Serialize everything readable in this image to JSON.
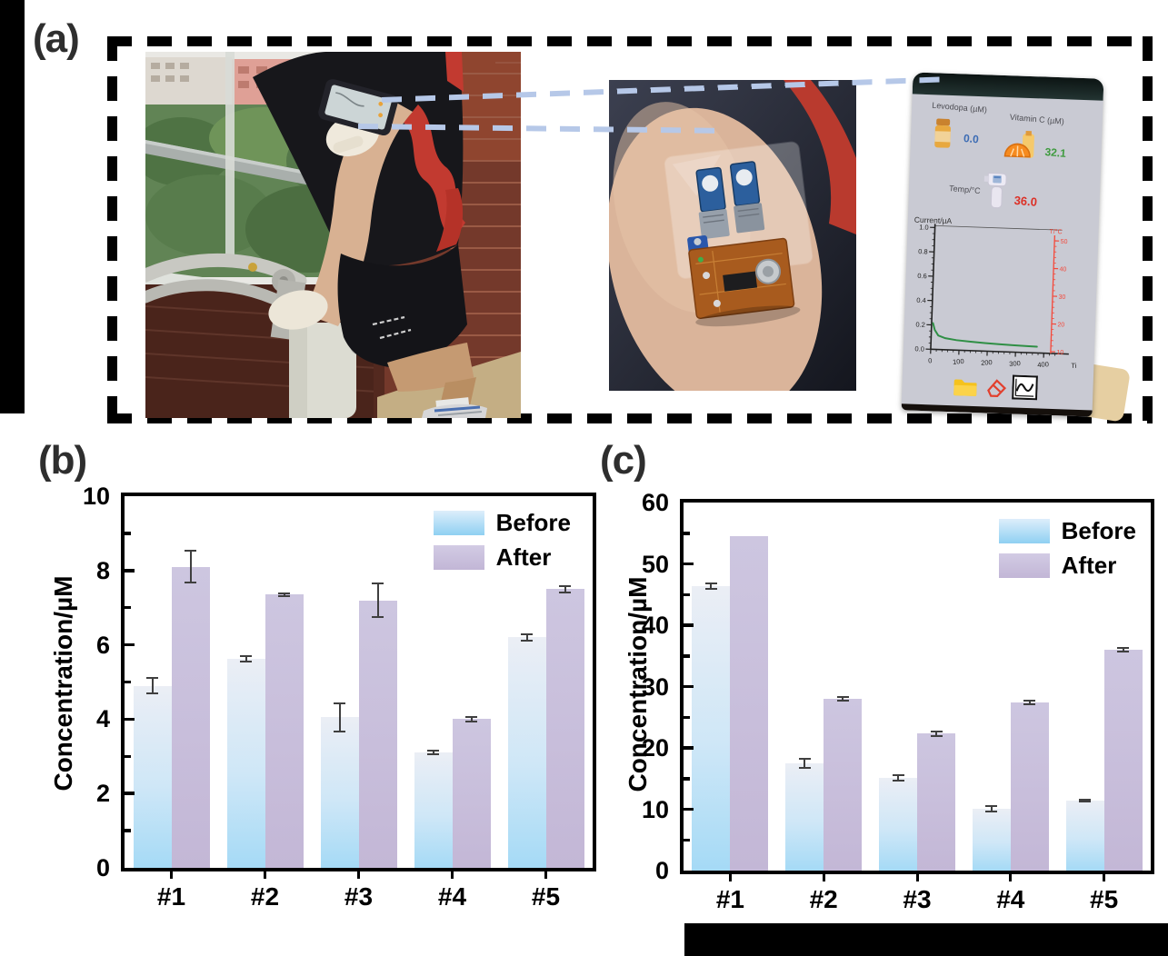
{
  "figure": {
    "panel_a_label": "(a)",
    "panel_b_label": "(b)",
    "panel_c_label": "(c)"
  },
  "phone_app": {
    "levodopa_label": "Levodopa (µM)",
    "levodopa_value": "0.0",
    "vitamin_c_label": "Vitamin C (µM)",
    "vitamin_c_value": "32.1",
    "temp_label": "Temp/°C",
    "temp_value": "36.0",
    "value_colors": {
      "levodopa": "#3c6cb4",
      "vitamin_c": "#3f9b3f",
      "temp": "#dc3026"
    }
  },
  "chart_data": [
    {
      "id": "b",
      "type": "bar",
      "categories": [
        "#1",
        "#2",
        "#3",
        "#4",
        "#5"
      ],
      "series": [
        {
          "name": "Before",
          "values": [
            4.9,
            5.62,
            4.05,
            3.1,
            6.2
          ],
          "errors": [
            0.2,
            0.07,
            0.38,
            0.05,
            0.08
          ]
        },
        {
          "name": "After",
          "values": [
            8.1,
            7.35,
            7.2,
            4.0,
            7.5
          ],
          "errors": [
            0.43,
            0.04,
            0.45,
            0.06,
            0.09
          ]
        }
      ],
      "ylabel": "Concentration/µM",
      "ylim": [
        0,
        10
      ],
      "yticks": [
        0,
        2,
        4,
        6,
        8,
        10
      ],
      "minor_step": 1,
      "legend_position": "top-right",
      "grid": false
    },
    {
      "id": "c",
      "type": "bar",
      "categories": [
        "#1",
        "#2",
        "#3",
        "#4",
        "#5"
      ],
      "series": [
        {
          "name": "Before",
          "values": [
            46.4,
            17.5,
            15.1,
            10.1,
            11.4
          ],
          "errors": [
            0.45,
            0.7,
            0.4,
            0.45,
            0.2
          ]
        },
        {
          "name": "After",
          "values": [
            54.5,
            28.0,
            22.3,
            27.4,
            36.0
          ],
          "errors": [
            0,
            0.35,
            0.35,
            0.25,
            0.35
          ]
        }
      ],
      "ylabel": "Concentration/µM",
      "ylim": [
        0,
        60
      ],
      "yticks": [
        0,
        10,
        20,
        30,
        40,
        50,
        60
      ],
      "minor_step": 5,
      "legend_position": "top-right",
      "grid": false
    },
    {
      "id": "phone_monitor",
      "type": "line",
      "title": "Current/µA",
      "x_axis_label": "Ti",
      "xlim": [
        0,
        450
      ],
      "xticks": [
        0,
        100,
        200,
        300,
        400
      ],
      "ylim": [
        0,
        1.0
      ],
      "ytick_labels": [
        "1.0",
        "0.8",
        "0.6",
        "0.4",
        "0.2",
        "0.0"
      ],
      "right_axis_label": "T/°C",
      "right_axis_color": "#f4483a",
      "right_ticks": [
        50,
        40,
        30,
        20,
        10
      ],
      "series": [
        {
          "name": "current",
          "color": "#2f8f45",
          "points": [
            [
              5,
              0.215
            ],
            [
              12,
              0.16
            ],
            [
              25,
              0.115
            ],
            [
              50,
              0.095
            ],
            [
              90,
              0.082
            ],
            [
              140,
              0.073
            ],
            [
              190,
              0.066
            ],
            [
              240,
              0.061
            ],
            [
              290,
              0.057
            ],
            [
              340,
              0.053
            ],
            [
              375,
              0.051
            ]
          ]
        }
      ],
      "grid": false
    }
  ],
  "colors": {
    "before_bottom": "#a5daf6",
    "after_body": "#c6bcda",
    "connector_dash": "#b6c8e8",
    "axis": "#000000"
  }
}
